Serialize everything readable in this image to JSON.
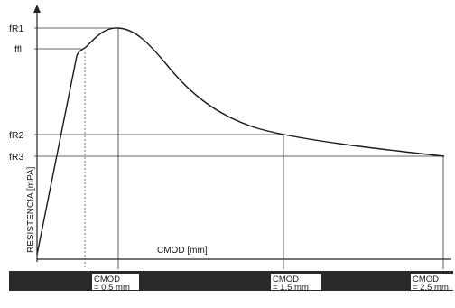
{
  "diagram": {
    "y_axis_label": "RESISTENCIA [mPA]",
    "x_axis_label": "CMOD [mm]",
    "levels": [
      {
        "id": "fR1",
        "label": "fR1"
      },
      {
        "id": "fl",
        "label": "ffl"
      },
      {
        "id": "fR2",
        "label": "fR2"
      },
      {
        "id": "fR3",
        "label": "fR3"
      }
    ],
    "cmod_marks": [
      {
        "id": "cmod05",
        "title": "CMOD",
        "value": "= 0.5 mm"
      },
      {
        "id": "cmod15",
        "title": "CMOD",
        "value": "= 1.5 mm"
      },
      {
        "id": "cmod25",
        "title": "CMOD",
        "value": "= 2.5 mm"
      }
    ]
  }
}
